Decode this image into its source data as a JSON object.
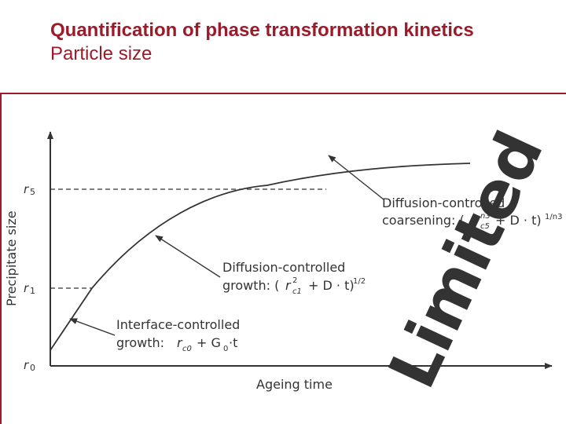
{
  "slide": {
    "title": "Quantification of phase transformation kinetics",
    "subtitle": "Particle size"
  },
  "diagram": {
    "y_axis_label": "Precipitate size",
    "x_axis_label": "Ageing time",
    "ticks": {
      "rc5": "5",
      "rc1": "1",
      "rc0": "0"
    },
    "annotations": {
      "coarsening_line1": "Diffusion-controlled",
      "coarsening_line2_prefix": "coarsening: (",
      "coarsening_exp_top": "n3",
      "coarsening_sub": "c5",
      "coarsening_suffix": "+ D · t)",
      "coarsening_outer_exp": "1/n3",
      "growth_line1": "Diffusion-controlled",
      "growth_line2_prefix": "growth: (",
      "growth_exp": "2",
      "growth_sub": "c1",
      "growth_suffix": "+ D · t)",
      "growth_outer_exp": "1/2",
      "interface_line1": "Interface-controlled",
      "interface_line2_prefix": "growth:",
      "interface_sub": "c0",
      "interface_suffix": "+ G",
      "interface_sub2": "0",
      "interface_tail": "·t"
    },
    "watermark": "Limited",
    "colors": {
      "title": "#9b1b2a",
      "ink": "#333333",
      "watermark": "#555555"
    }
  }
}
